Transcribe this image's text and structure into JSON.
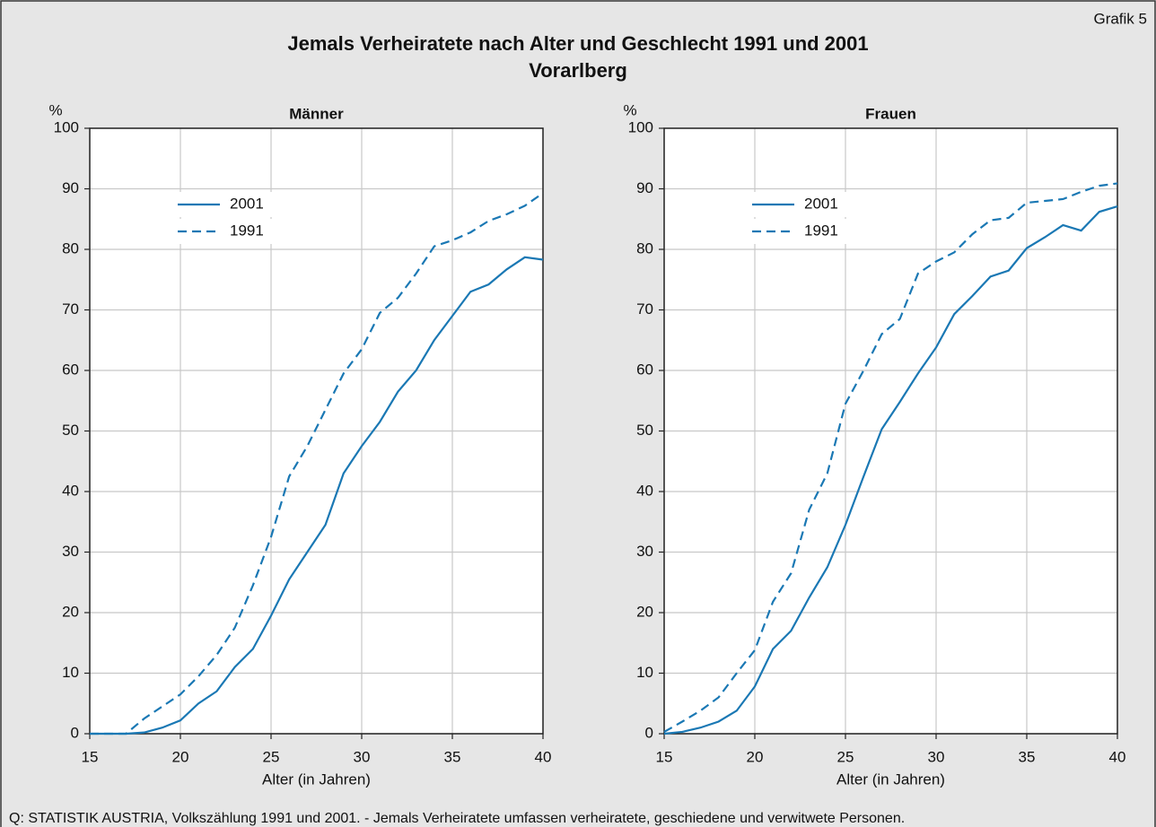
{
  "header": {
    "label": "Grafik 5",
    "title": "Jemals Verheiratete nach Alter und Geschlecht 1991 und 2001",
    "subtitle": "Vorarlberg"
  },
  "footer": {
    "source": "Q: STATISTIK AUSTRIA, Volkszählung 1991 und 2001. - Jemals Verheiratete umfassen verheiratete, geschiedene und verwitwete Personen."
  },
  "chart_data": [
    {
      "type": "line",
      "title": "Männer",
      "y_unit": "%",
      "xlabel": "Alter (in Jahren)",
      "x": [
        15,
        16,
        17,
        18,
        19,
        20,
        21,
        22,
        23,
        24,
        25,
        26,
        27,
        28,
        29,
        30,
        31,
        32,
        33,
        34,
        35,
        36,
        37,
        38,
        39,
        40
      ],
      "series": [
        {
          "name": "2001",
          "color": "#1a78b4",
          "dash": "solid",
          "values": [
            0,
            0,
            0,
            0.2,
            1,
            2.2,
            5,
            7,
            11,
            14,
            19.5,
            25.5,
            30,
            34.5,
            43,
            47.5,
            51.5,
            56.5,
            60,
            65,
            69,
            73,
            74.2,
            76.7,
            78.7,
            78.3
          ]
        },
        {
          "name": "1991",
          "color": "#1a78b4",
          "dash": "dashed",
          "values": [
            0,
            0,
            0,
            2.5,
            4.5,
            6.5,
            9.5,
            13,
            17.5,
            24.5,
            32.5,
            42.5,
            47.5,
            53.5,
            59.5,
            63.5,
            69.5,
            72,
            76,
            80.5,
            81.5,
            82.8,
            84.7,
            85.8,
            87.2,
            89.3
          ]
        }
      ],
      "xlim": [
        15,
        40
      ],
      "ylim": [
        0,
        100
      ],
      "xticks": [
        15,
        20,
        25,
        30,
        35,
        40
      ],
      "yticks": [
        0,
        10,
        20,
        30,
        40,
        50,
        60,
        70,
        80,
        90,
        100
      ],
      "grid": true,
      "legend": "upper left"
    },
    {
      "type": "line",
      "title": "Frauen",
      "y_unit": "%",
      "xlabel": "Alter (in Jahren)",
      "x": [
        15,
        16,
        17,
        18,
        19,
        20,
        21,
        22,
        23,
        24,
        25,
        26,
        27,
        28,
        29,
        30,
        31,
        32,
        33,
        34,
        35,
        36,
        37,
        38,
        39,
        40
      ],
      "series": [
        {
          "name": "2001",
          "color": "#1a78b4",
          "dash": "solid",
          "values": [
            0,
            0.3,
            1,
            2,
            3.8,
            7.8,
            14,
            17,
            22.5,
            27.5,
            34.5,
            42.5,
            50.3,
            54.8,
            59.5,
            63.8,
            69.3,
            72.3,
            75.5,
            76.5,
            80.2,
            82,
            84,
            83.1,
            86.2,
            87.1
          ]
        },
        {
          "name": "1991",
          "color": "#1a78b4",
          "dash": "dashed",
          "values": [
            0.3,
            2,
            3.8,
            6,
            10,
            13.8,
            21.8,
            26.5,
            37,
            43,
            54.5,
            60,
            66,
            68.5,
            76,
            78,
            79.5,
            82.5,
            84.8,
            85.2,
            87.7,
            88,
            88.3,
            89.5,
            90.5,
            90.9
          ]
        }
      ],
      "xlim": [
        15,
        40
      ],
      "ylim": [
        0,
        100
      ],
      "xticks": [
        15,
        20,
        25,
        30,
        35,
        40
      ],
      "yticks": [
        0,
        10,
        20,
        30,
        40,
        50,
        60,
        70,
        80,
        90,
        100
      ],
      "grid": true,
      "legend": "upper left"
    }
  ]
}
